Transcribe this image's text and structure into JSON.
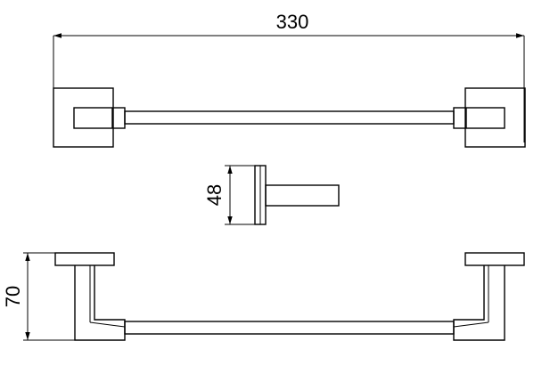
{
  "dimensions": {
    "width_label": "330",
    "depth_label": "48",
    "height_label": "70"
  }
}
